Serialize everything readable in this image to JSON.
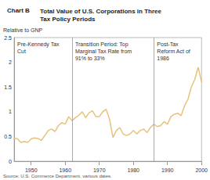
{
  "chart_data": {
    "type": "line",
    "chart_label": "Chart B",
    "title": "Total Value of U.S. Corporations in Three Tax Policy Periods",
    "y_label": "Relative to GNP",
    "source": "Source: U.S. Commerce Department, various dates.",
    "x": [
      1945,
      1946,
      1947,
      1948,
      1949,
      1950,
      1951,
      1952,
      1953,
      1954,
      1955,
      1956,
      1957,
      1958,
      1959,
      1960,
      1961,
      1962,
      1963,
      1964,
      1965,
      1966,
      1967,
      1968,
      1969,
      1970,
      1971,
      1972,
      1973,
      1974,
      1975,
      1976,
      1977,
      1978,
      1979,
      1980,
      1981,
      1982,
      1983,
      1984,
      1985,
      1986,
      1987,
      1988,
      1989,
      1990,
      1991,
      1992,
      1993,
      1994,
      1995,
      1996,
      1997,
      1998,
      1999,
      2000
    ],
    "series": [
      {
        "color": "#e8c27a",
        "values": [
          0.47,
          0.45,
          0.38,
          0.4,
          0.38,
          0.45,
          0.47,
          0.46,
          0.42,
          0.52,
          0.62,
          0.65,
          0.6,
          0.72,
          0.78,
          0.75,
          0.9,
          0.82,
          0.88,
          0.93,
          1.0,
          0.88,
          0.98,
          1.02,
          0.9,
          0.9,
          1.0,
          1.05,
          0.85,
          0.48,
          0.62,
          0.68,
          0.55,
          0.52,
          0.55,
          0.62,
          0.55,
          0.62,
          0.65,
          0.58,
          0.68,
          0.75,
          0.7,
          0.72,
          0.8,
          0.75,
          0.9,
          0.95,
          0.97,
          0.92,
          1.12,
          1.25,
          1.5,
          1.65,
          1.9,
          1.6
        ]
      }
    ],
    "periods": [
      {
        "label": "Pre-Kennedy Tax Cut",
        "start": 1945,
        "end": 1962
      },
      {
        "label": "Transition Period: Top Marginal Tax Rate from 91% to 33%",
        "start": 1962,
        "end": 1986
      },
      {
        "label": "Post-Tax Reform Act of 1986",
        "start": 1986,
        "end": 2000
      }
    ],
    "xlim": [
      1945,
      2000
    ],
    "xticks": [
      1950,
      1960,
      1970,
      1980,
      1990,
      2000
    ],
    "ylim": [
      0,
      2.5
    ],
    "yticks": [
      0,
      0.5,
      1,
      1.5,
      2,
      2.5
    ],
    "grid": false
  }
}
